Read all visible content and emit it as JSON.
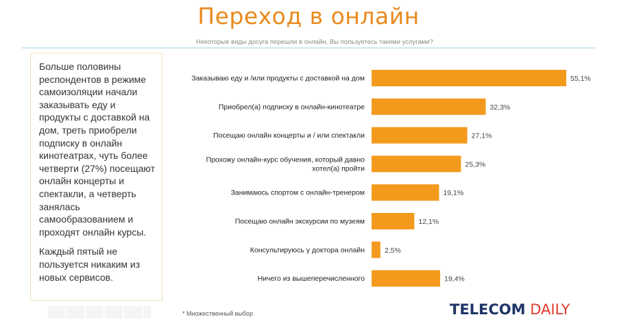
{
  "page": {
    "title": "Переход в онлайн",
    "subtitle": "Некоторые виды досуга перешли в онлайн, Вы пользуетесь такими услугами?",
    "summary": [
      "Больше половины респондентов в режиме самоизоляции начали заказывать еду и продукты с доставкой на дом, треть приобрели подписку в онлайн кинотеатрах, чуть более четверти (27%) посещают онлайн концерты и спектакли, а четверть занялась самообразованием и проходят онлайн курсы.",
      "Каждый пятый не пользуется никаким из новых сервисов."
    ],
    "footnote": "* Множественный выбор",
    "logo_part1": "TELECOM",
    "logo_part2": "DAILY",
    "logo_colors": {
      "telecom": "#1f3566",
      "daily": "#e03a2b"
    }
  },
  "chart_data": {
    "type": "bar",
    "orientation": "horizontal",
    "title": "Переход в онлайн",
    "subtitle": "Некоторые виды досуга перешли в онлайн, Вы пользуетесь такими услугами?",
    "categories": [
      [
        "Заказываю еду и /или продукты с доставкой на дом"
      ],
      [
        "Приобрел(а) подписку в онлайн-кинотеатре"
      ],
      [
        "Посещаю онлайн концерты и / или спектакли"
      ],
      [
        "Прохожу онлайн-курс обучения, который давно",
        "хотел(а) пройти"
      ],
      [
        "Занимаюсь спортом с онлайн-тренером"
      ],
      [
        "Посещаю онлайн экскурсии по музеям"
      ],
      [
        "Консультируюсь у доктора онлайн"
      ],
      [
        "Ничего из вышеперечисленного"
      ]
    ],
    "values": [
      55.1,
      32.3,
      27.1,
      25.3,
      19.1,
      12.1,
      2.5,
      19.4
    ],
    "value_labels": [
      "55,1%",
      "32,3%",
      "27,1%",
      "25,3%",
      "19,1%",
      "12,1%",
      "2,5%",
      "19,4%"
    ],
    "xlim": [
      0,
      55.1
    ],
    "bar_color": "#f39a1d",
    "grid": false,
    "legend": "none"
  }
}
